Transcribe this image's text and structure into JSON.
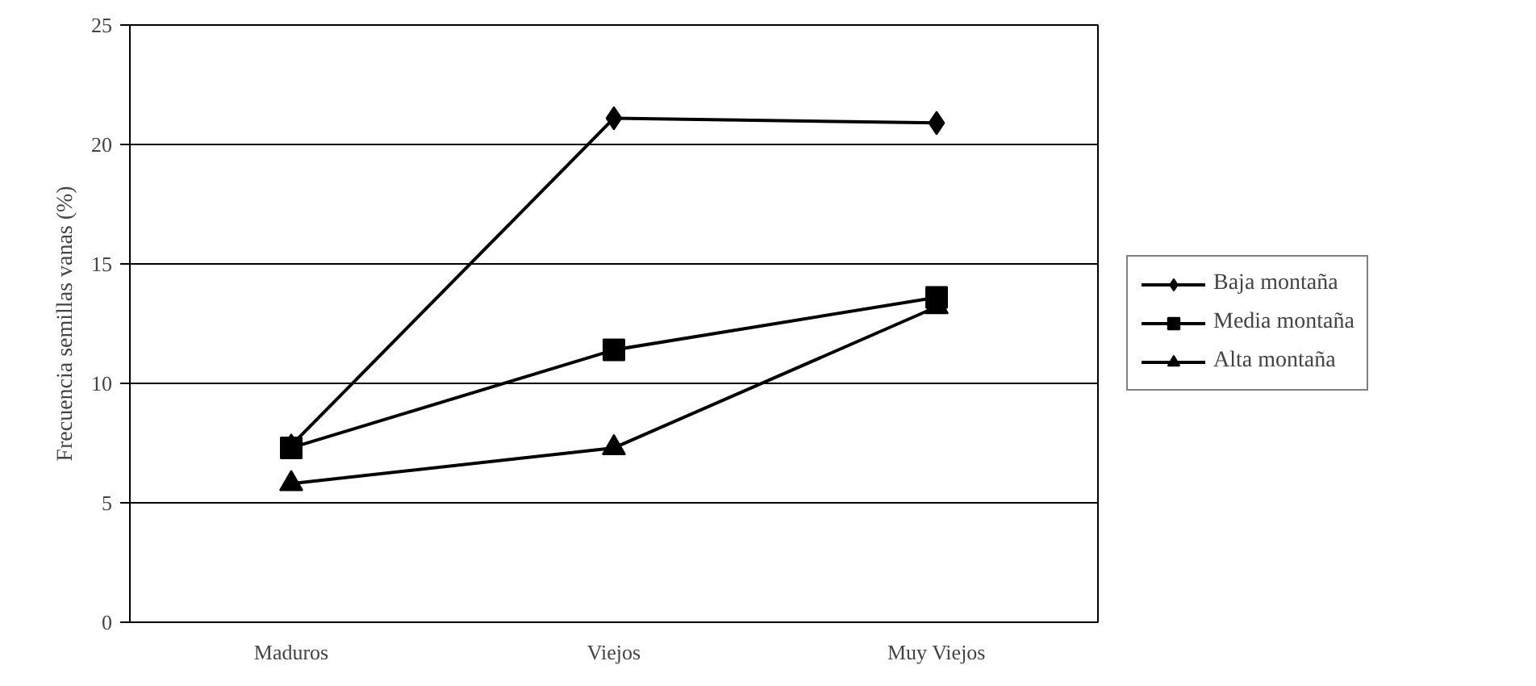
{
  "chart_data": {
    "type": "line",
    "ylabel": "Frecuencia semillas vanas (%)",
    "categories": [
      "Maduros",
      "Viejos",
      "Muy Viejos"
    ],
    "series": [
      {
        "name": "Baja montaña",
        "color": "#000000",
        "marker": "diamond",
        "values": [
          7.4,
          21.1,
          20.9
        ]
      },
      {
        "name": "Media montaña",
        "color": "#000000",
        "marker": "square",
        "values": [
          7.3,
          11.4,
          13.6
        ]
      },
      {
        "name": "Alta montaña",
        "color": "#000000",
        "marker": "triangle",
        "values": [
          5.8,
          7.3,
          13.2
        ]
      }
    ],
    "ylim": [
      0,
      25
    ],
    "yticks": [
      0,
      5,
      10,
      15,
      20,
      25
    ],
    "grid": "y",
    "legend": "right",
    "line_style": "solid"
  }
}
